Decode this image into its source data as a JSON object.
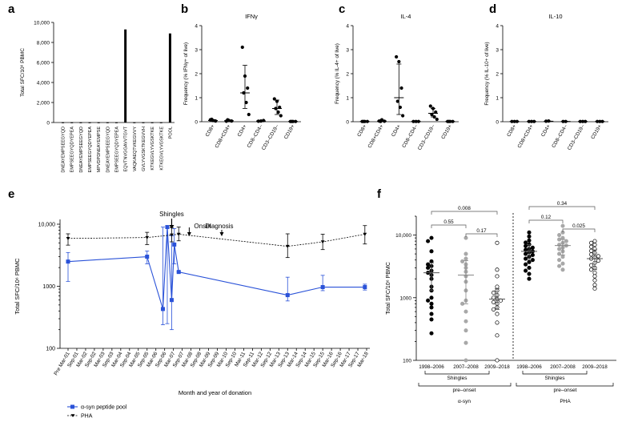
{
  "panel_labels": {
    "a": "a",
    "b": "b",
    "c": "c",
    "d": "d",
    "e": "e",
    "f": "f"
  },
  "chart_data": [
    {
      "id": "a",
      "type": "bar",
      "title": "",
      "ylabel": "Total SFC/10⁶ PBMC",
      "ylim": [
        0,
        10000
      ],
      "yticks": [
        0,
        2000,
        4000,
        6000,
        8000,
        10000
      ],
      "ytick_labels": [
        "0",
        "2,000",
        "4,000",
        "6,000",
        "8,000",
        "10,000"
      ],
      "categories": [
        "DNEAYEMPSEEGYQD",
        "EMPSEEGYQDYEPEA",
        "DNEAYEMPSEEGYQD",
        "EMPSEEGYQDYEPEA",
        "MPVDPDNEAYEMPSE",
        "DNEAYEMPSEEGYQD",
        "EMPSEEGYQDYEPEA",
        "EQVTNVGGAVVTGVT",
        "VAQKAEQTVKEGVVY",
        "GVLYVGSKTKEGVVH",
        "KTKEGVLYVGSKTKE",
        "KTKEGVLYVGSKTKE",
        "POOL"
      ],
      "values": [
        30,
        30,
        30,
        30,
        30,
        30,
        30,
        9300,
        30,
        30,
        30,
        30,
        8900
      ]
    },
    {
      "id": "b",
      "type": "scatter",
      "title": "IFNγ",
      "ylabel": "Frequency (% IFNγ+ of live)",
      "ylim": [
        0,
        4
      ],
      "yticks": [
        0,
        1,
        2,
        3,
        4
      ],
      "ytick_labels": [
        "0",
        "1",
        "2",
        "3",
        "4"
      ],
      "categories": [
        "CD8+",
        "CD8+CD4+",
        "CD4+",
        "CD8–CD4–",
        "CD3–CD19–",
        "CD19+"
      ],
      "series": [
        [
          0.08,
          0.05,
          0.03,
          0.1
        ],
        [
          0.02,
          0.05,
          0.03,
          0.08
        ],
        [
          3.1,
          1.9,
          1.4,
          1.2,
          0.8,
          0.3
        ],
        [
          0.02,
          0.03,
          0.05
        ],
        [
          0.95,
          0.85,
          0.6,
          0.55,
          0.4,
          0.25
        ],
        [
          0.01,
          0.01,
          0.01,
          0.01
        ]
      ],
      "center": [
        0.05,
        0.04,
        1.2,
        0.03,
        0.55,
        0.01
      ],
      "err_low": [
        0.02,
        0.02,
        0.55,
        0.01,
        0.3,
        0.0
      ],
      "err_high": [
        0.09,
        0.07,
        2.35,
        0.05,
        0.9,
        0.02
      ]
    },
    {
      "id": "c",
      "type": "scatter",
      "title": "IL-4",
      "ylabel": "Frequency (% IL-4+ of live)",
      "ylim": [
        0,
        4
      ],
      "yticks": [
        0,
        1,
        2,
        3,
        4
      ],
      "ytick_labels": [
        "0",
        "1",
        "2",
        "3",
        "4"
      ],
      "categories": [
        "CD8+",
        "CD8+CD4+",
        "CD4+",
        "CD8–CD4–",
        "CD3–CD19–",
        "CD19+"
      ],
      "series": [
        [
          0.01,
          0.01,
          0.01,
          0.01
        ],
        [
          0.03,
          0.08,
          0.02,
          0.01
        ],
        [
          2.7,
          2.5,
          1.4,
          0.85,
          0.6,
          0.25
        ],
        [
          0.01,
          0.01,
          0.01
        ],
        [
          0.65,
          0.55,
          0.4,
          0.3,
          0.2,
          0.1
        ],
        [
          0.01,
          0.01,
          0.01,
          0.01
        ]
      ],
      "center": [
        0.01,
        0.03,
        1.0,
        0.01,
        0.35,
        0.01
      ],
      "err_low": [
        0.0,
        0.01,
        0.3,
        0.0,
        0.2,
        0.0
      ],
      "err_high": [
        0.02,
        0.06,
        2.4,
        0.02,
        0.55,
        0.02
      ]
    },
    {
      "id": "d",
      "type": "scatter",
      "title": "IL-10",
      "ylabel": "Frequency (% IL-10+ of live)",
      "ylim": [
        0,
        4
      ],
      "yticks": [
        0,
        1,
        2,
        3,
        4
      ],
      "ytick_labels": [
        "0",
        "1",
        "2",
        "3",
        "4"
      ],
      "categories": [
        "CD8+",
        "CD8+CD4+",
        "CD4+",
        "CD8–CD4–",
        "CD3–CD19–",
        "CD19+"
      ],
      "series": [
        [
          0.01,
          0.01,
          0.01
        ],
        [
          0.01,
          0.01,
          0.01
        ],
        [
          0.02,
          0.03
        ],
        [
          0.01,
          0.01
        ],
        [
          0.01,
          0.01,
          0.01
        ],
        [
          0.01,
          0.01,
          0.01
        ]
      ],
      "center": [
        0.01,
        0.01,
        0.02,
        0.01,
        0.01,
        0.01
      ],
      "err_low": [
        0,
        0,
        0,
        0,
        0,
        0
      ],
      "err_high": [
        0.02,
        0.02,
        0.03,
        0.02,
        0.02,
        0.02
      ]
    },
    {
      "id": "e",
      "type": "line",
      "xlabel": "Month and year of donation",
      "ylabel": "Total SFC/10⁶ PBMC",
      "yscale": "log",
      "ylim": [
        100,
        10000
      ],
      "yticks": [
        100,
        1000,
        10000
      ],
      "ytick_labels": [
        "100",
        "1000",
        "10,000"
      ],
      "x_categories": [
        "Pre Mar-01",
        "Sep-01",
        "Mar-02",
        "Sep-02",
        "Mar-03",
        "Sep-03",
        "Mar-04",
        "Sep-04",
        "Mar-05",
        "Sep-05",
        "Mar-06",
        "Sep-06",
        "Mar-07",
        "Sep-07",
        "Mar-08",
        "Sep-08",
        "Mar-09",
        "Sep-09",
        "Mar-10",
        "Sep-10",
        "Mar-11",
        "Sep-11",
        "Mar-12",
        "Sep-12",
        "Mar-13",
        "Sep-13",
        "Mar-14",
        "Sep-14",
        "Mar-15",
        "Sep-15",
        "Mar-16",
        "Sep-16",
        "Mar-17",
        "Sep-17",
        "Mar-18"
      ],
      "series": [
        {
          "name": "α-syn peptide pool",
          "color": "#2a52d8",
          "x": [
            0,
            9,
            10.8,
            11.3,
            11.8,
            12.1,
            12.6,
            25,
            29,
            33.8
          ],
          "y": [
            2500,
            3000,
            430,
            9000,
            600,
            4700,
            1700,
            720,
            970,
            970
          ],
          "err_low": [
            1200,
            2300,
            240,
            250,
            200,
            2300,
            1700,
            580,
            850,
            870
          ],
          "err_high": [
            3500,
            3700,
            9000,
            9000,
            6500,
            8500,
            1700,
            1400,
            1500,
            1080
          ]
        },
        {
          "name": "PHA",
          "color": "#000000",
          "x": [
            0,
            9,
            11.8,
            12.6,
            25,
            29,
            33.8
          ],
          "y": [
            5900,
            6100,
            6700,
            6900,
            4400,
            5200,
            6900
          ],
          "err_low": [
            4600,
            4700,
            5200,
            5400,
            2900,
            3900,
            4800
          ],
          "err_high": [
            7000,
            7400,
            8800,
            9000,
            7000,
            6900,
            9500
          ]
        }
      ],
      "annotations": [
        {
          "text": "Shingles",
          "x": 11.8
        },
        {
          "text": "Onset",
          "x": 13.8
        },
        {
          "text": "Diagnosis",
          "x": 17.5
        }
      ],
      "legend": [
        "α-syn peptide pool",
        "PHA"
      ]
    },
    {
      "id": "f",
      "type": "scatter",
      "ylabel": "Total SFC/10⁶ PBMC",
      "yscale": "log",
      "ylim": [
        100,
        20000
      ],
      "yticks": [
        100,
        1000,
        10000
      ],
      "ytick_labels": [
        "100",
        "1000",
        "10,000"
      ],
      "categories": [
        "1998–2006",
        "2007–2008",
        "2009–2018",
        "1998–2006",
        "2007–2008",
        "2009–2018"
      ],
      "group_labels": [
        "Shingles",
        "pre–onset",
        "α-syn",
        "Shingles",
        "pre–onset",
        "PHA"
      ],
      "series": [
        {
          "group": "α-syn",
          "period": "1998–2006",
          "style": "filled-black",
          "median": 2500,
          "iqr": [
            1300,
            3600
          ],
          "values": [
            9000,
            8000,
            5500,
            3800,
            3400,
            3200,
            3000,
            2700,
            2500,
            2300,
            2000,
            1500,
            1300,
            1000,
            900,
            800,
            700,
            550,
            450,
            270
          ]
        },
        {
          "group": "α-syn",
          "period": "2007–2008",
          "style": "filled-gray",
          "median": 2300,
          "iqr": [
            800,
            3900
          ],
          "values": [
            9000,
            5000,
            4200,
            3800,
            3400,
            3000,
            2600,
            2200,
            1800,
            1300,
            900,
            800,
            600,
            420,
            300,
            190,
            100
          ]
        },
        {
          "group": "α-syn",
          "period": "2009–2018",
          "style": "open",
          "median": 950,
          "iqr": [
            650,
            1400
          ],
          "values": [
            7500,
            2800,
            2200,
            1500,
            1300,
            1200,
            1100,
            1000,
            950,
            900,
            850,
            800,
            700,
            650,
            550,
            400,
            250,
            100
          ]
        },
        {
          "group": "PHA",
          "period": "1998–2006",
          "style": "filled-black",
          "median": 5500,
          "iqr": [
            4000,
            7000
          ],
          "values": [
            11000,
            9500,
            8200,
            7600,
            7100,
            6700,
            6300,
            6000,
            5800,
            5500,
            5300,
            5000,
            4800,
            4500,
            4200,
            4000,
            3700,
            3400,
            3000,
            2700,
            2400,
            2000
          ]
        },
        {
          "group": "PHA",
          "period": "2007–2008",
          "style": "filled-gray",
          "median": 6800,
          "iqr": [
            4800,
            8500
          ],
          "values": [
            14000,
            11000,
            10000,
            9000,
            8500,
            8000,
            7500,
            7000,
            6800,
            6300,
            6000,
            5500,
            5000,
            4500,
            4000,
            3500,
            3200,
            2800
          ]
        },
        {
          "group": "PHA",
          "period": "2009–2018",
          "style": "open",
          "median": 4200,
          "iqr": [
            2800,
            5800
          ],
          "values": [
            8000,
            7500,
            7000,
            6500,
            6000,
            5600,
            5200,
            4900,
            4600,
            4400,
            4200,
            3900,
            3600,
            3300,
            3000,
            2800,
            2500,
            2200,
            1900,
            1600,
            1400
          ]
        }
      ],
      "p_values": [
        {
          "text": "0.008",
          "from": 0,
          "to": 2
        },
        {
          "text": "0.55",
          "from": 0,
          "to": 1
        },
        {
          "text": "0.17",
          "from": 1,
          "to": 2
        },
        {
          "text": "0.34",
          "from": 3,
          "to": 5
        },
        {
          "text": "0.12",
          "from": 3,
          "to": 4
        },
        {
          "text": "0.025",
          "from": 4,
          "to": 5
        }
      ]
    }
  ]
}
